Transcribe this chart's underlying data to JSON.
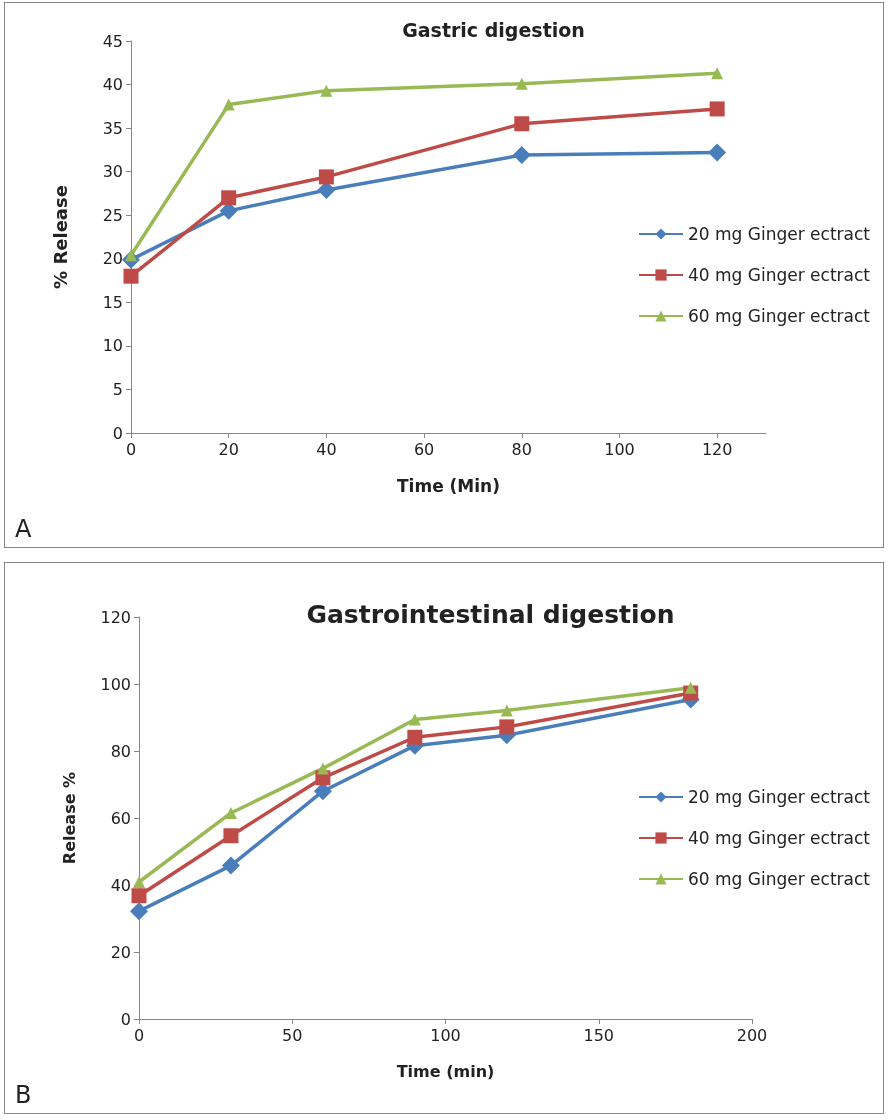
{
  "chart_data": [
    {
      "type": "line",
      "title": "Gastric digestion",
      "xlabel": "Time (Min)",
      "ylabel": "% Release",
      "x": [
        0,
        20,
        40,
        80,
        120
      ],
      "series": [
        {
          "name": "20 mg Ginger ectract",
          "color": "#4a7ebb",
          "marker": "diamond",
          "values": [
            19.9,
            25.5,
            27.9,
            31.9,
            32.2
          ]
        },
        {
          "name": "40 mg Ginger ectract",
          "color": "#be4b48",
          "marker": "square",
          "values": [
            18.0,
            27.0,
            29.4,
            35.5,
            37.2
          ]
        },
        {
          "name": "60 mg Ginger ectract",
          "color": "#98b954",
          "marker": "triangle",
          "values": [
            20.4,
            37.7,
            39.3,
            40.1,
            41.3
          ]
        }
      ],
      "xlim": [
        0,
        130
      ],
      "xticks": [
        0,
        20,
        40,
        60,
        80,
        100,
        120
      ],
      "ylim": [
        0,
        45
      ],
      "yticks": [
        0,
        5,
        10,
        15,
        20,
        25,
        30,
        35,
        40,
        45
      ],
      "grid": false,
      "legend": "right",
      "line_style": "solid",
      "annotations": [
        "A"
      ]
    },
    {
      "type": "line",
      "title": "Gastrointestinal digestion",
      "xlabel": "Time (min)",
      "ylabel": "Release %",
      "x": [
        0,
        30,
        60,
        90,
        120,
        180
      ],
      "series": [
        {
          "name": "20 mg Ginger ectract",
          "color": "#4a7ebb",
          "marker": "diamond",
          "values": [
            32.2,
            45.8,
            68.0,
            81.6,
            84.7,
            95.4
          ]
        },
        {
          "name": "40 mg Ginger ectract",
          "color": "#be4b48",
          "marker": "square",
          "values": [
            36.8,
            54.7,
            72.0,
            84.1,
            87.2,
            97.3
          ]
        },
        {
          "name": "60 mg Ginger ectract",
          "color": "#98b954",
          "marker": "triangle",
          "values": [
            40.9,
            61.5,
            74.8,
            89.4,
            92.1,
            98.9
          ]
        }
      ],
      "xlim": [
        0,
        200
      ],
      "xticks": [
        0,
        50,
        100,
        150,
        200
      ],
      "ylim": [
        0,
        120
      ],
      "yticks": [
        0,
        20,
        40,
        60,
        80,
        100,
        120
      ],
      "grid": false,
      "legend": "right",
      "line_style": "solid",
      "annotations": [
        "B"
      ]
    }
  ]
}
